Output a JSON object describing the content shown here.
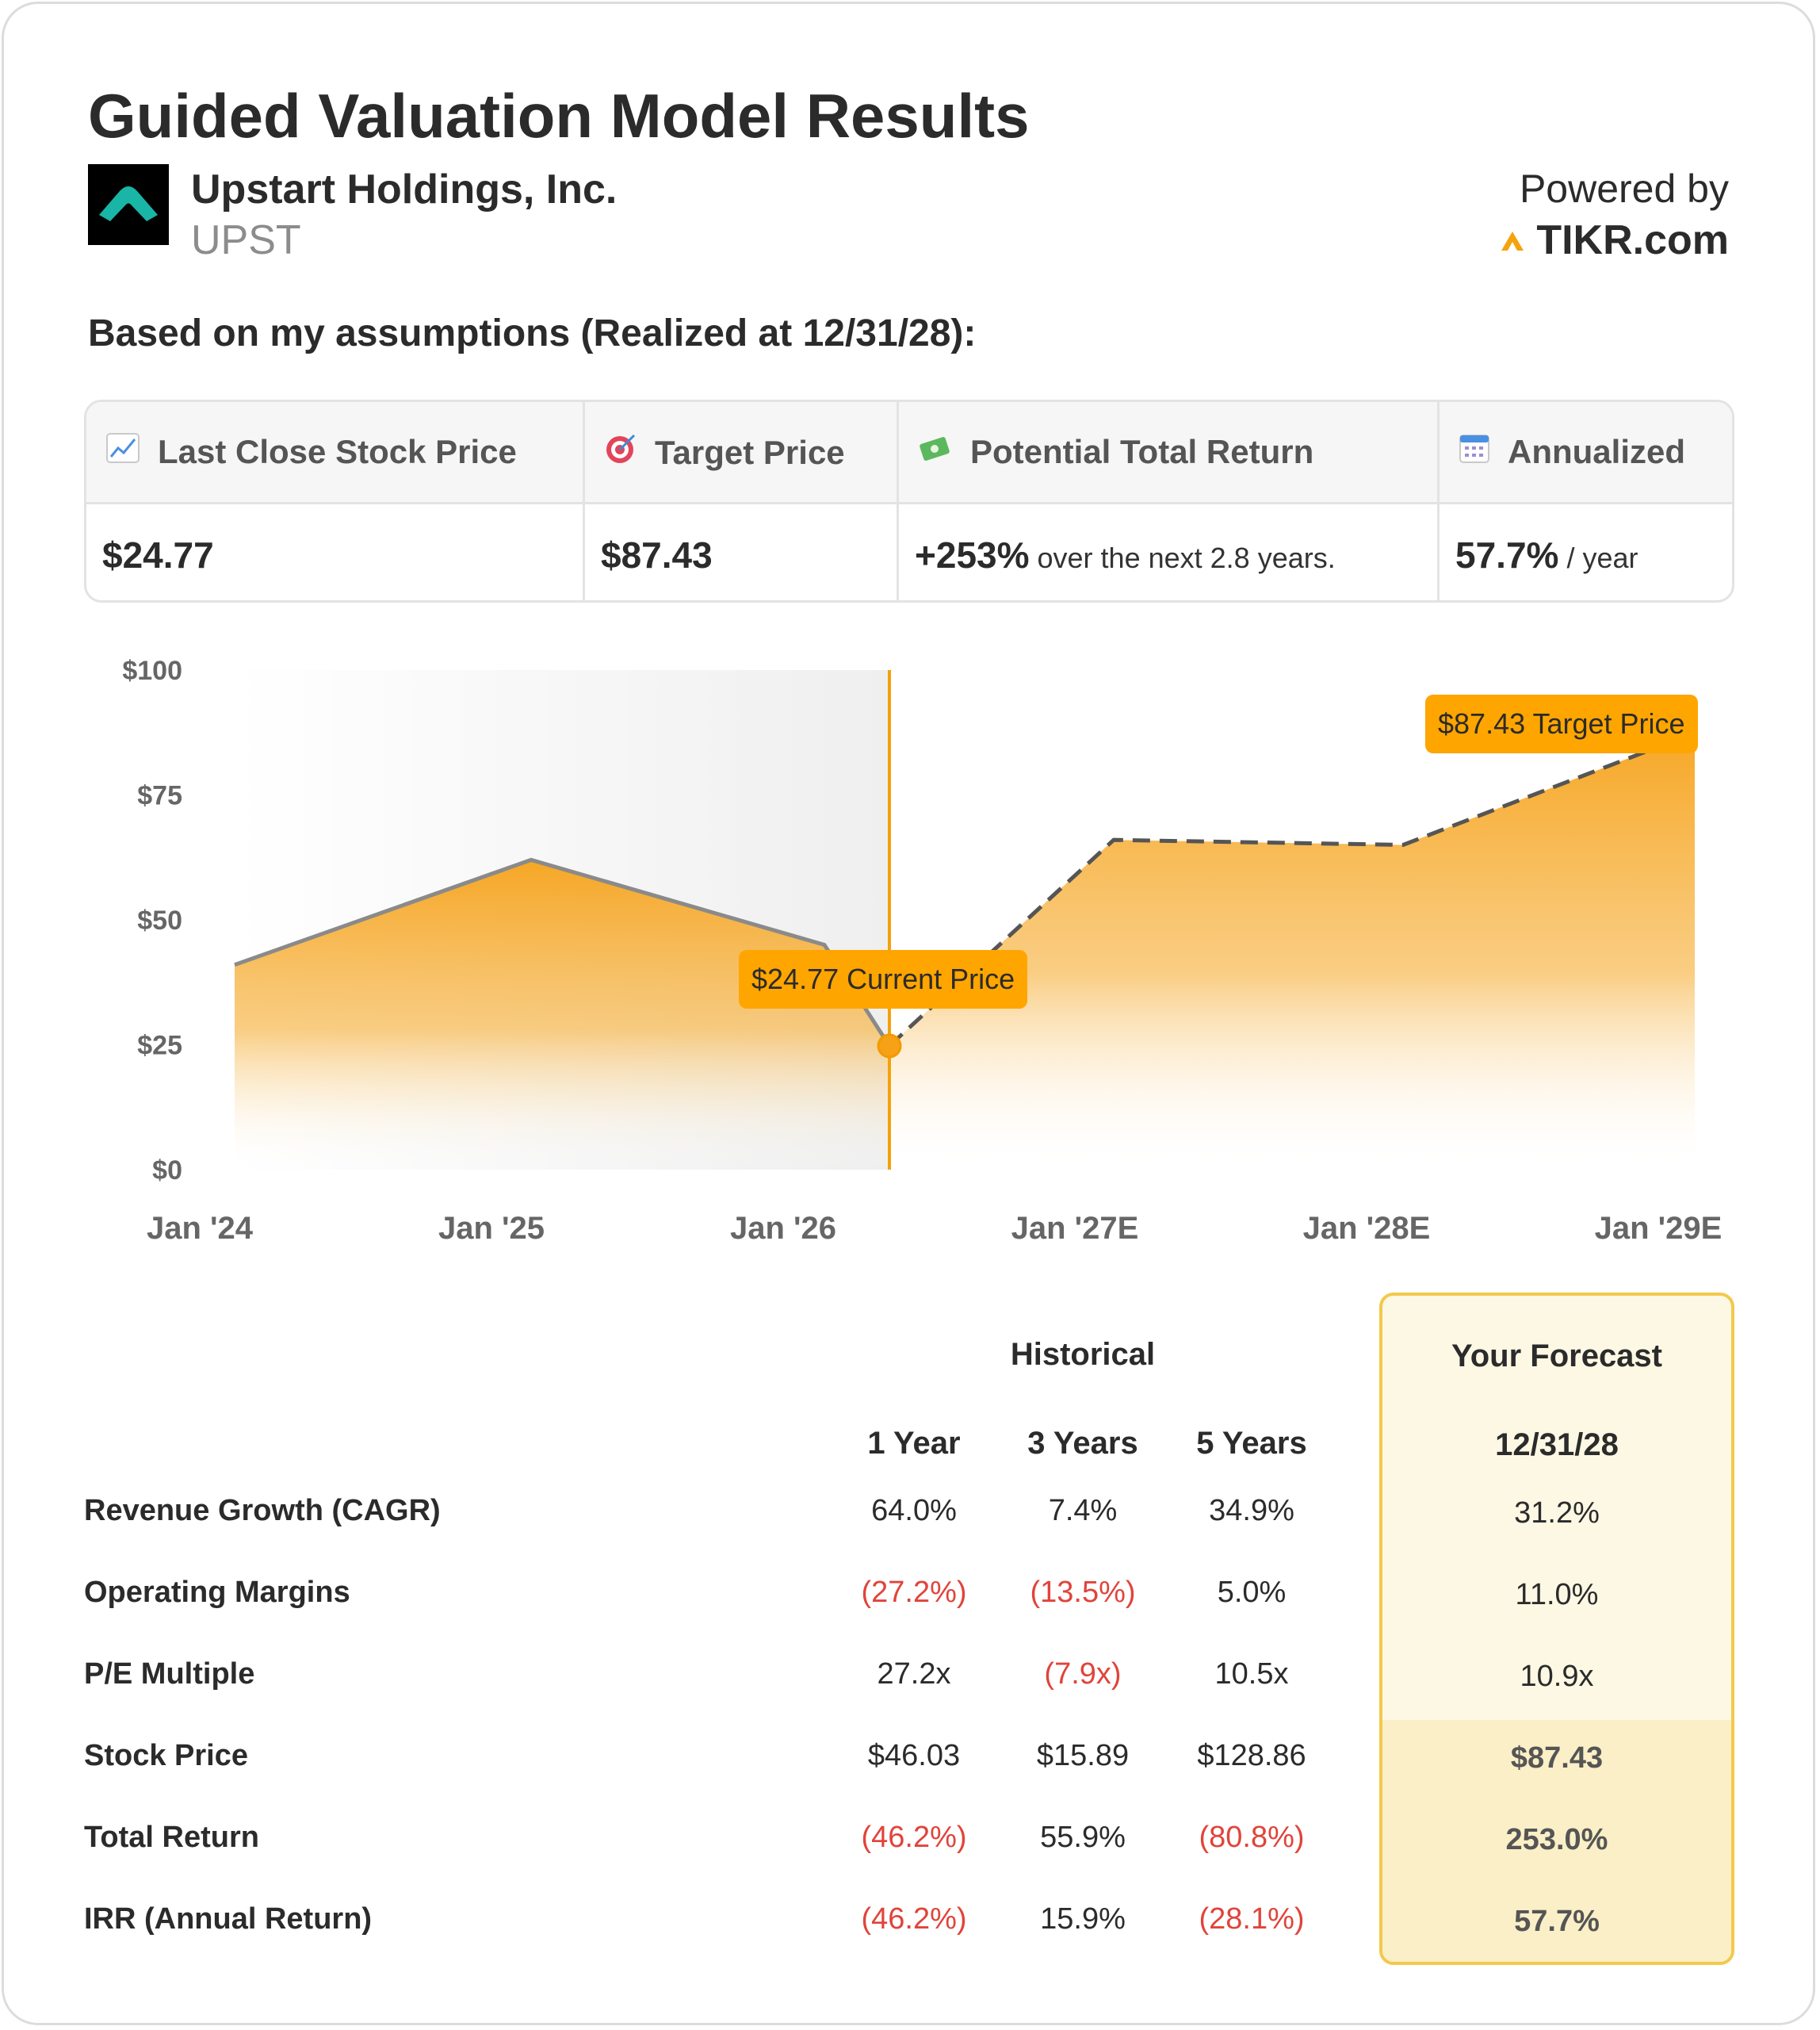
{
  "header": {
    "title": "Guided Valuation Model Results",
    "company_name": "Upstart Holdings, Inc.",
    "ticker": "UPST",
    "powered_by": "Powered by",
    "brand": "TIKR.com"
  },
  "assumptions_line": "Based on my assumptions (Realized at 12/31/28):",
  "summary": {
    "last_close_label": "Last Close Stock Price",
    "last_close_value": "$24.77",
    "target_label": "Target Price",
    "target_value": "$87.43",
    "return_label": "Potential Total Return",
    "return_value": "+253%",
    "return_note": "over the next 2.8 years.",
    "annualized_label": "Annualized",
    "annualized_value": "57.7%",
    "annualized_note": "/ year"
  },
  "chart_data": {
    "type": "area",
    "x_labels": [
      "Jan '24",
      "Jan '25",
      "Jan '26",
      "Jan '27E",
      "Jan '28E",
      "Jan '29E"
    ],
    "y_ticks": [
      "$0",
      "$25",
      "$50",
      "$75",
      "$100"
    ],
    "ylim": [
      0,
      100
    ],
    "series": [
      {
        "kind": "historical",
        "points": [
          [
            "Jan '24",
            41
          ],
          [
            "Jan '25",
            62
          ],
          [
            "Jan '26",
            45
          ],
          [
            "Current",
            24.77
          ]
        ]
      },
      {
        "kind": "forecast",
        "points": [
          [
            "Current",
            24.77
          ],
          [
            "Jan '27E",
            66
          ],
          [
            "Jan '28E",
            65
          ],
          [
            "Jan '29E",
            87.43
          ]
        ]
      }
    ],
    "current_label": "$24.77 Current Price",
    "target_label": "$87.43 Target Price",
    "colors": {
      "accent": "#ffa500",
      "line": "#8a8a8a",
      "forecast_line": "#555555"
    }
  },
  "table": {
    "historical_header": "Historical",
    "forecast_header": "Your Forecast",
    "columns": [
      "1 Year",
      "3 Years",
      "5 Years"
    ],
    "forecast_date": "12/31/28",
    "rows": [
      {
        "label": "Revenue Growth (CAGR)",
        "values": [
          "64.0%",
          "7.4%",
          "34.9%"
        ],
        "neg": [
          false,
          false,
          false
        ],
        "forecast": "31.2%"
      },
      {
        "label": "Operating Margins",
        "values": [
          "(27.2%)",
          "(13.5%)",
          "5.0%"
        ],
        "neg": [
          true,
          true,
          false
        ],
        "forecast": "11.0%"
      },
      {
        "label": "P/E Multiple",
        "values": [
          "27.2x",
          "(7.9x)",
          "10.5x"
        ],
        "neg": [
          false,
          true,
          false
        ],
        "forecast": "10.9x"
      },
      {
        "label": "Stock Price",
        "values": [
          "$46.03",
          "$15.89",
          "$128.86"
        ],
        "neg": [
          false,
          false,
          false
        ],
        "forecast": "$87.43"
      },
      {
        "label": "Total Return",
        "values": [
          "(46.2%)",
          "55.9%",
          "(80.8%)"
        ],
        "neg": [
          true,
          false,
          true
        ],
        "forecast": "253.0%"
      },
      {
        "label": "IRR (Annual Return)",
        "values": [
          "(46.2%)",
          "15.9%",
          "(28.1%)"
        ],
        "neg": [
          true,
          false,
          true
        ],
        "forecast": "57.7%"
      }
    ]
  }
}
